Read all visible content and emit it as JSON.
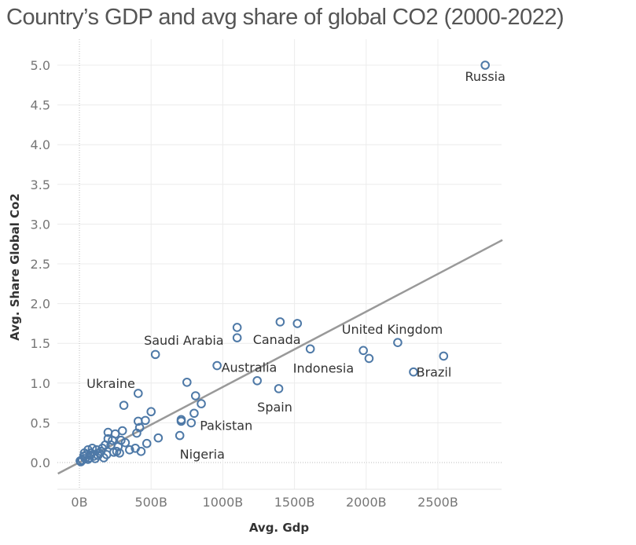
{
  "chart_data": {
    "type": "scatter",
    "title": "Country’s GDP and avg share of global CO2 (2000-2022)",
    "xlabel": "Avg. Gdp",
    "ylabel": "Avg. Share Global Co2",
    "xlim": [
      -150,
      2950
    ],
    "ylim": [
      -0.15,
      5.3
    ],
    "x_ticks": [
      0,
      500,
      1000,
      1500,
      2000,
      2500
    ],
    "x_tick_labels": [
      "0B",
      "500B",
      "1000B",
      "1500B",
      "2000B",
      "2500B"
    ],
    "y_ticks": [
      0,
      0.5,
      1,
      1.5,
      2,
      2.5,
      3,
      3.5,
      4,
      4.5,
      5
    ],
    "y_tick_labels": [
      "0.0",
      "0.5",
      "1.0",
      "1.5",
      "2.0",
      "2.5",
      "3.0",
      "3.5",
      "4.0",
      "4.5",
      "5.0"
    ],
    "grid": true,
    "marker_color": "#4e79a7",
    "trend_line": {
      "color": "#999999",
      "x": [
        -150,
        2950
      ],
      "y": [
        -0.14,
        2.8
      ]
    },
    "points": [
      {
        "x": 2830,
        "y": 5.0
      },
      {
        "x": 2540,
        "y": 1.34
      },
      {
        "x": 2330,
        "y": 1.14
      },
      {
        "x": 2220,
        "y": 1.51
      },
      {
        "x": 2020,
        "y": 1.31
      },
      {
        "x": 1980,
        "y": 1.41
      },
      {
        "x": 1610,
        "y": 1.43
      },
      {
        "x": 1520,
        "y": 1.75
      },
      {
        "x": 1400,
        "y": 1.77
      },
      {
        "x": 1390,
        "y": 0.93
      },
      {
        "x": 1240,
        "y": 1.03
      },
      {
        "x": 1100,
        "y": 1.7
      },
      {
        "x": 1100,
        "y": 1.57
      },
      {
        "x": 960,
        "y": 1.22
      },
      {
        "x": 850,
        "y": 0.74
      },
      {
        "x": 810,
        "y": 0.84
      },
      {
        "x": 800,
        "y": 0.62
      },
      {
        "x": 780,
        "y": 0.5
      },
      {
        "x": 750,
        "y": 1.01
      },
      {
        "x": 710,
        "y": 0.54
      },
      {
        "x": 710,
        "y": 0.52
      },
      {
        "x": 700,
        "y": 0.34
      },
      {
        "x": 550,
        "y": 0.31
      },
      {
        "x": 530,
        "y": 1.36
      },
      {
        "x": 500,
        "y": 0.64
      },
      {
        "x": 470,
        "y": 0.24
      },
      {
        "x": 460,
        "y": 0.53
      },
      {
        "x": 420,
        "y": 0.44
      },
      {
        "x": 410,
        "y": 0.87
      },
      {
        "x": 410,
        "y": 0.52
      },
      {
        "x": 400,
        "y": 0.37
      },
      {
        "x": 430,
        "y": 0.14
      },
      {
        "x": 390,
        "y": 0.18
      },
      {
        "x": 350,
        "y": 0.16
      },
      {
        "x": 310,
        "y": 0.72
      },
      {
        "x": 300,
        "y": 0.4
      },
      {
        "x": 290,
        "y": 0.28
      },
      {
        "x": 270,
        "y": 0.2
      },
      {
        "x": 250,
        "y": 0.36
      },
      {
        "x": 240,
        "y": 0.13
      },
      {
        "x": 220,
        "y": 0.22
      },
      {
        "x": 200,
        "y": 0.38
      },
      {
        "x": 200,
        "y": 0.3
      },
      {
        "x": 190,
        "y": 0.1
      },
      {
        "x": 170,
        "y": 0.06
      },
      {
        "x": 160,
        "y": 0.18
      },
      {
        "x": 140,
        "y": 0.12
      },
      {
        "x": 120,
        "y": 0.16
      },
      {
        "x": 100,
        "y": 0.08
      },
      {
        "x": 90,
        "y": 0.18
      },
      {
        "x": 80,
        "y": 0.12
      },
      {
        "x": 70,
        "y": 0.06
      },
      {
        "x": 60,
        "y": 0.16
      },
      {
        "x": 50,
        "y": 0.1
      },
      {
        "x": 40,
        "y": 0.05
      },
      {
        "x": 30,
        "y": 0.08
      },
      {
        "x": 20,
        "y": 0.03
      },
      {
        "x": 10,
        "y": 0.01
      },
      {
        "x": 5,
        "y": 0.02
      },
      {
        "x": 60,
        "y": 0.04
      },
      {
        "x": 110,
        "y": 0.05
      },
      {
        "x": 35,
        "y": 0.12
      },
      {
        "x": 75,
        "y": 0.09
      },
      {
        "x": 130,
        "y": 0.09
      },
      {
        "x": 150,
        "y": 0.14
      },
      {
        "x": 180,
        "y": 0.22
      },
      {
        "x": 230,
        "y": 0.28
      },
      {
        "x": 260,
        "y": 0.14
      },
      {
        "x": 320,
        "y": 0.25
      },
      {
        "x": 280,
        "y": 0.12
      }
    ],
    "annotations": [
      {
        "text": "Russia",
        "x": 2830,
        "y": 4.86
      },
      {
        "text": "Brazil",
        "x": 2350,
        "y": 1.14
      },
      {
        "text": "United Kingdom",
        "x": 1830,
        "y": 1.68
      },
      {
        "text": "Indonesia",
        "x": 1490,
        "y": 1.19
      },
      {
        "text": "Canada",
        "x": 1210,
        "y": 1.55
      },
      {
        "text": "Spain",
        "x": 1240,
        "y": 0.7
      },
      {
        "text": "Saudi Arabia",
        "x": 450,
        "y": 1.54
      },
      {
        "text": "Australia",
        "x": 990,
        "y": 1.2
      },
      {
        "text": "Ukraine",
        "x": 50,
        "y": 1.0
      },
      {
        "text": "Pakistan",
        "x": 840,
        "y": 0.47
      },
      {
        "text": "Nigeria",
        "x": 700,
        "y": 0.11
      }
    ]
  }
}
